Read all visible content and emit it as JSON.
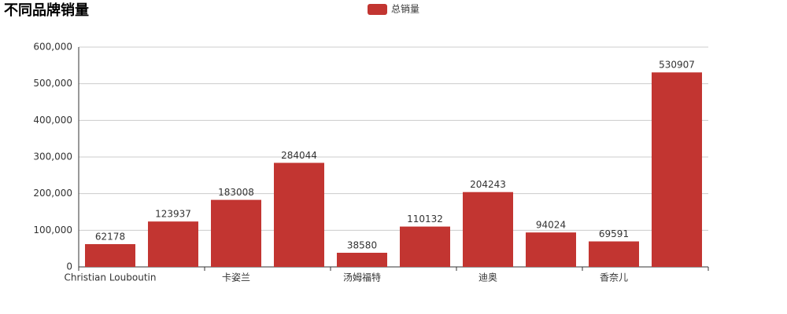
{
  "chart_data": {
    "type": "bar",
    "title": "不同品牌销量",
    "categories": [
      "Christian Louboutin",
      null,
      "卡姿兰",
      null,
      "汤姆福特",
      null,
      "迪奥",
      null,
      "香奈儿",
      null
    ],
    "series": [
      {
        "name": "总销量",
        "color": "#c23531",
        "values": [
          62178,
          123937,
          183008,
          284044,
          38580,
          110132,
          204243,
          94024,
          69591,
          530907
        ]
      }
    ],
    "ylim": [
      0,
      600000
    ],
    "yticks": [
      0,
      {
        "value": 100000,
        "label": "100,000"
      },
      {
        "value": 200000,
        "label": "200,000"
      },
      {
        "value": 300000,
        "label": "300,000"
      },
      {
        "value": 400000,
        "label": "400,000"
      },
      {
        "value": 500000,
        "label": "500,000"
      },
      {
        "value": 600000,
        "label": "600,000"
      }
    ],
    "grid": true,
    "legend": "top"
  }
}
